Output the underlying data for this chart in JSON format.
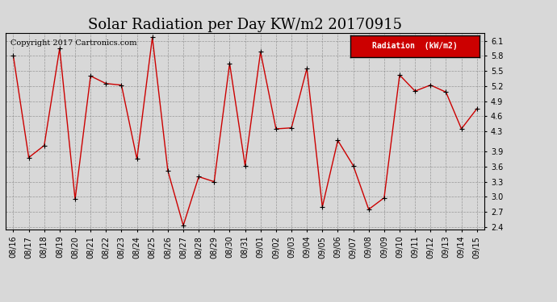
{
  "title": "Solar Radiation per Day KW/m2 20170915",
  "copyright": "Copyright 2017 Cartronics.com",
  "legend_label": "Radiation  (kW/m2)",
  "ylim": [
    2.35,
    6.25
  ],
  "yticks": [
    2.4,
    2.7,
    3.0,
    3.3,
    3.6,
    3.9,
    4.3,
    4.6,
    4.9,
    5.2,
    5.5,
    5.8,
    6.1
  ],
  "dates": [
    "08/16",
    "08/17",
    "08/18",
    "08/19",
    "08/20",
    "08/21",
    "08/22",
    "08/23",
    "08/24",
    "08/25",
    "08/26",
    "08/27",
    "08/28",
    "08/29",
    "08/30",
    "08/31",
    "09/01",
    "09/02",
    "09/03",
    "09/04",
    "09/05",
    "09/06",
    "09/07",
    "09/08",
    "09/09",
    "09/10",
    "09/11",
    "09/12",
    "09/13",
    "09/14",
    "09/15"
  ],
  "values": [
    5.8,
    3.78,
    4.02,
    5.95,
    2.95,
    5.4,
    5.25,
    5.22,
    3.75,
    6.17,
    3.52,
    2.43,
    3.4,
    3.3,
    5.65,
    3.62,
    5.88,
    4.35,
    4.37,
    5.55,
    2.8,
    4.12,
    3.62,
    2.75,
    2.98,
    5.42,
    5.1,
    5.22,
    5.08,
    4.35,
    4.75
  ],
  "line_color": "#cc0000",
  "marker_color": "#000000",
  "bg_color": "#d8d8d8",
  "plot_bg": "#d8d8d8",
  "grid_color": "#888888",
  "legend_bg": "#cc0000",
  "legend_text_color": "#ffffff",
  "title_fontsize": 13,
  "tick_fontsize": 7,
  "copyright_fontsize": 7
}
